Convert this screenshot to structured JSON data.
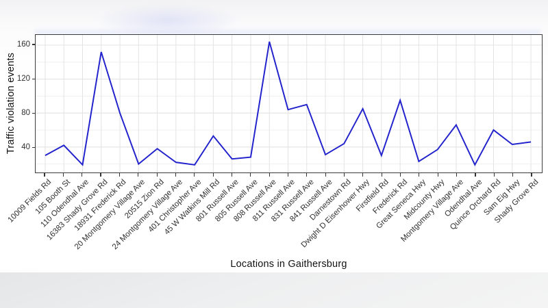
{
  "page": {
    "bottom_band_color": "#e7e8e9",
    "background_color": "#ffffff"
  },
  "chart_data": {
    "type": "line",
    "title": "",
    "xlabel": "Locations in Gaithersburg",
    "ylabel": "Traffic violation events",
    "categories": [
      "10009 Fields Rd",
      "105 Booth St",
      "110 Odendhal Ave",
      "16383 Shady Grove Rd",
      "18931 Frederick Rd",
      "20 Montgomery Village Ave",
      "20515 Zion Rd",
      "24 Montgomery Village Ave",
      "401 Christopher Ave",
      "45 W Watkins Mill Rd",
      "801 Russell Ave",
      "805 Russell Ave",
      "808 Russell Ave",
      "811 Russell Ave",
      "831 Russell Ave",
      "841 Russell Ave",
      "Darnestown Rd",
      "Dwight D Eisenhower Hwy",
      "Firstfield Rd",
      "Frederick Rd",
      "Great Seneca Hwy",
      "Midcounty Hwy",
      "Montgomery Village Ave",
      "Odendhal Ave",
      "Quince Orchard Rd",
      "Sam Eig Hwy",
      "Shady Grove Rd"
    ],
    "values": [
      30,
      42,
      19,
      152,
      80,
      20,
      38,
      22,
      19,
      53,
      26,
      28,
      164,
      84,
      90,
      31,
      44,
      85,
      30,
      95,
      23,
      37,
      66,
      19,
      60,
      43,
      46
    ],
    "ylim": [
      10,
      172
    ],
    "yticks": [
      40,
      80,
      120,
      160
    ],
    "yticks_minor": [
      20,
      60,
      100,
      140
    ],
    "x_tick_angle_deg": 45,
    "grid": "on",
    "legend": "none",
    "line_color": "#2323CD",
    "grid_major_color": "#e3e3e3",
    "grid_minor_color": "#efefef",
    "axis_text_color": "#303030",
    "panel_border_color": "#3a3a3a"
  }
}
